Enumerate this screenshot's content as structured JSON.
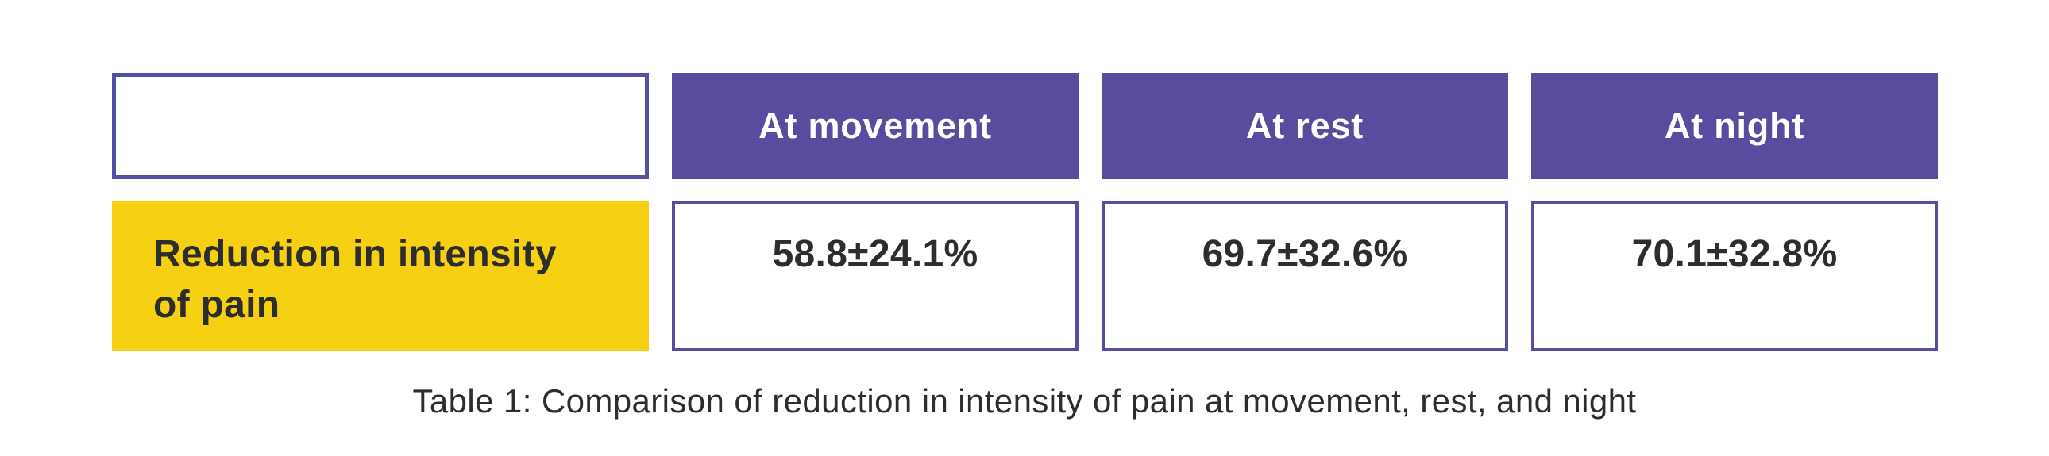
{
  "chart_data": {
    "type": "table",
    "title": "Table 1",
    "columns": [
      "",
      "At movement",
      "At rest",
      "At night"
    ],
    "rows": [
      {
        "label": "Reduction in intensity of pain",
        "values": [
          "58.8±24.1%",
          "69.7±32.6%",
          "70.1±32.8%"
        ]
      }
    ],
    "values_numeric": [
      {
        "condition": "At movement",
        "mean_percent": 58.8,
        "sd_percent": 24.1
      },
      {
        "condition": "At rest",
        "mean_percent": 69.7,
        "sd_percent": 32.6
      },
      {
        "condition": "At night",
        "mean_percent": 70.1,
        "sd_percent": 32.8
      }
    ],
    "caption": "Table 1: Comparison of reduction in intensity of pain at movement, rest, and night"
  },
  "colors": {
    "purple_fill": "#5a4b9e",
    "purple_border": "#5350a3",
    "yellow": "#f6d012",
    "header_text": "#ffffff",
    "text_dark": "#2d2d2d"
  }
}
